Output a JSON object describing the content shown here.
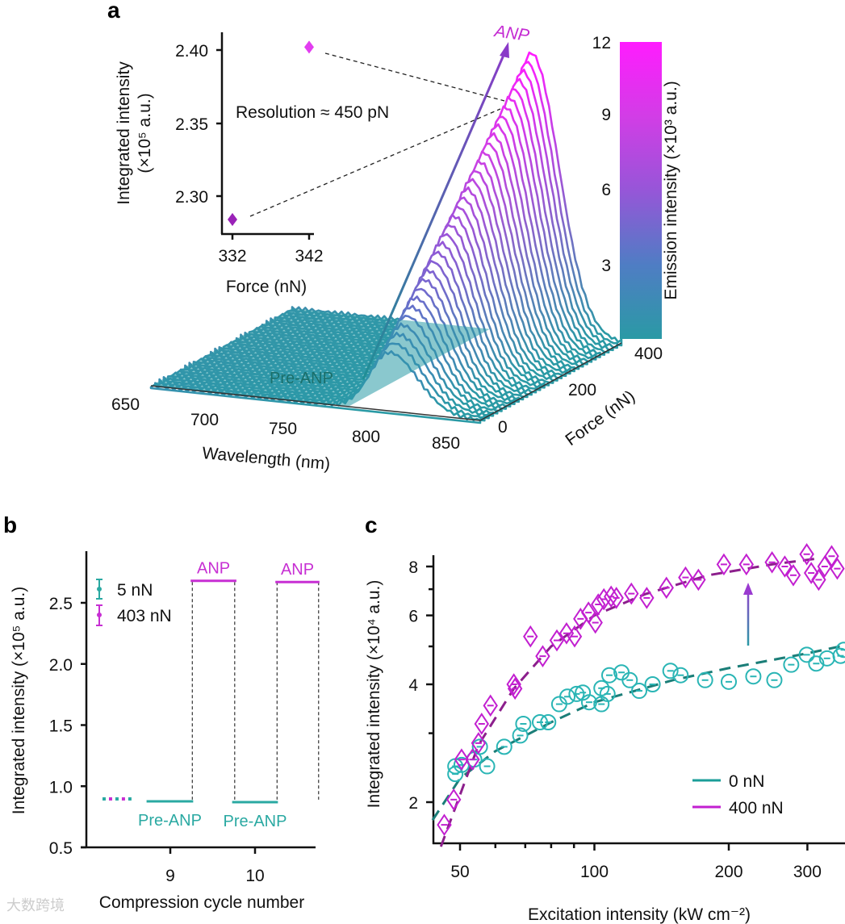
{
  "panel_labels": {
    "a": "a",
    "b": "b",
    "c": "c"
  },
  "colors": {
    "teal": "#2aa9ad",
    "teal_dark": "#1b7e78",
    "magenta": "#c42ad2",
    "purple_dark": "#8c1f8c",
    "colormap": [
      "#2a9aa5",
      "#4f7dc4",
      "#9656d8",
      "#d23de6",
      "#ff1cff"
    ]
  },
  "watermark": "大数跨境",
  "chart_data": [
    {
      "id": "a-3d",
      "type": "line",
      "title": "",
      "xlabel": "Wavelength (nm)",
      "ylabel": "Force (nN)",
      "zlabel": "Emission intensity (×10³ a.u.)",
      "x_ticks": [
        "650",
        "700",
        "750",
        "800",
        "850"
      ],
      "y_ticks": [
        "0",
        "200",
        "400"
      ],
      "colorbar_ticks": [
        "3",
        "6",
        "9",
        "12"
      ],
      "colorbar_range": [
        0,
        12
      ],
      "xlim": [
        650,
        850
      ],
      "ylim": [
        0,
        400
      ],
      "peak_wavelength_nm": 795,
      "n_traces": 34,
      "peak_intensity_at_0nN": 2.5,
      "peak_intensity_at_400nN": 12,
      "annotations": {
        "pre": "Pre-ANP",
        "post": "ANP"
      }
    },
    {
      "id": "a-inset",
      "type": "scatter",
      "xlabel": "Force (nN)",
      "ylabel_line1": "Integrated intensity",
      "ylabel_line2": "(×10⁵ a.u.)",
      "x_ticks": [
        "332",
        "342"
      ],
      "y_ticks": [
        "2.30",
        "2.35",
        "2.40"
      ],
      "xlim": [
        330.6,
        342.9
      ],
      "ylim": [
        2.276,
        2.412
      ],
      "points": [
        {
          "x": 332,
          "y": 2.284,
          "err": 0.004
        },
        {
          "x": 342,
          "y": 2.402,
          "err": 0.004
        }
      ],
      "annotation": "Resolution ≈ 450 pN"
    },
    {
      "id": "b",
      "type": "line",
      "xlabel": "Compression cycle number",
      "ylabel": "Integrated intensity (×10⁵ a.u.)",
      "x_ticks": [
        "9",
        "10"
      ],
      "y_ticks": [
        "0.5",
        "1.0",
        "1.5",
        "2.0",
        "2.5"
      ],
      "xlim": [
        8.0,
        10.72
      ],
      "ylim": [
        0.5,
        2.85
      ],
      "legend": [
        {
          "label": "5 nN",
          "color": "#2aa9a2"
        },
        {
          "label": "403 nN",
          "color": "#c72fd3"
        }
      ],
      "segments": [
        {
          "state": "Pre-ANP",
          "x0": 8.72,
          "x1": 9.27,
          "y": 0.876
        },
        {
          "state": "ANP",
          "x0": 9.24,
          "x1": 9.78,
          "y": 2.68
        },
        {
          "state": "Pre-ANP",
          "x0": 9.73,
          "x1": 10.27,
          "y": 0.87
        },
        {
          "state": "ANP",
          "x0": 10.24,
          "x1": 10.76,
          "y": 2.67
        }
      ],
      "dotted_start": {
        "x0": 8.2,
        "x1": 8.58,
        "y": 0.896
      },
      "dashed_transitions": [
        9.26,
        9.76,
        10.26,
        10.75
      ],
      "labels": [
        "Pre-ANP",
        "ANP",
        "Pre-ANP",
        "ANP"
      ]
    },
    {
      "id": "c",
      "type": "scatter",
      "xlabel": "Excitation intensity (kW cm⁻²)",
      "ylabel": "Integrated intensity (×10⁴ a.u.)",
      "x_scale": "log",
      "y_scale": "log",
      "x_ticks": [
        "50",
        "100",
        "200",
        "300"
      ],
      "y_ticks": [
        "2",
        "4",
        "6",
        "8"
      ],
      "xlim": [
        43.6,
        365
      ],
      "ylim": [
        1.57,
        8.55
      ],
      "legend_position": "bottom-right",
      "series": [
        {
          "name": "0 nN",
          "marker": "circle",
          "color": "#2ab5b5",
          "x": [
            48.8,
            48.8,
            50.4,
            53.8,
            55.4,
            57.5,
            62.8,
            68.2,
            69.3,
            75.5,
            78.8,
            83.4,
            87,
            91.2,
            94.2,
            97.3,
            103.7,
            103.7,
            107,
            108,
            115,
            120,
            126,
            135,
            148,
            156,
            177,
            200,
            227,
            253,
            276,
            299,
            314,
            332,
            356,
            362
          ],
          "y": [
            2.47,
            2.36,
            2.49,
            2.57,
            2.77,
            2.47,
            2.77,
            2.96,
            3.17,
            3.2,
            3.2,
            3.56,
            3.72,
            3.78,
            3.81,
            3.6,
            3.91,
            3.56,
            3.78,
            4.22,
            4.29,
            4.1,
            3.85,
            4.0,
            4.33,
            4.22,
            4.1,
            4.06,
            4.19,
            4.1,
            4.49,
            4.76,
            4.52,
            4.66,
            4.73,
            4.9
          ],
          "fit_x": [
            43.4,
            50,
            60,
            80,
            100,
            150,
            200,
            300,
            370
          ],
          "fit_y": [
            1.8,
            2.3,
            2.7,
            3.2,
            3.6,
            4.1,
            4.4,
            4.8,
            5.05
          ]
        },
        {
          "name": "400 nN",
          "marker": "diamond",
          "color": "#c21fd0",
          "x": [
            46.1,
            48.4,
            50.4,
            53.3,
            55,
            55.9,
            58.5,
            66,
            66.4,
            71.9,
            76.6,
            82.4,
            86.6,
            90.3,
            93.1,
            97,
            100.5,
            102,
            105,
            109,
            112,
            121,
            131,
            145,
            160,
            171,
            195,
            219,
            250,
            267,
            279,
            299,
            306,
            318,
            328,
            340,
            350
          ],
          "y": [
            1.75,
            2.03,
            2.57,
            2.57,
            2.83,
            3.17,
            3.53,
            4.0,
            3.9,
            5.3,
            4.72,
            5.18,
            5.4,
            5.3,
            5.88,
            6.1,
            5.75,
            6.4,
            6.6,
            6.7,
            6.65,
            6.82,
            6.65,
            7.06,
            7.5,
            7.4,
            8.1,
            8.1,
            8.2,
            8.0,
            7.6,
            8.6,
            7.7,
            7.4,
            8.0,
            8.5,
            7.9
          ],
          "fit_x": [
            45.3,
            55,
            66,
            80,
            100,
            130,
            180,
            250,
            320
          ],
          "fit_y": [
            1.54,
            2.8,
            3.9,
            5.0,
            6.0,
            6.8,
            7.6,
            8.1,
            8.4
          ]
        }
      ]
    }
  ]
}
